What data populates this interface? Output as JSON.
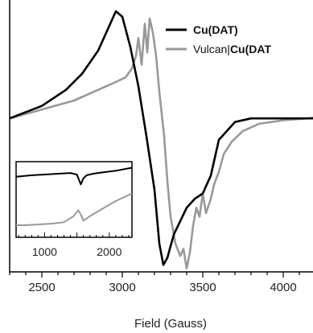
{
  "chart_data": {
    "type": "line",
    "xlabel": "Field (Gauss)",
    "ylabel": "",
    "xlim": [
      2300,
      4250
    ],
    "x_ticks": [
      2500,
      3000,
      3500,
      4000
    ],
    "x_tick_labels": [
      "2500",
      "3000",
      "3500",
      "4000"
    ],
    "y_ticks": [],
    "legend": {
      "placement": "top-right",
      "entries": [
        {
          "text_plain": "",
          "text_bold": "Cu(DAT)",
          "color": "#000000"
        },
        {
          "text_plain": "Vulcan|",
          "text_bold": "Cu(DAT",
          "color": "#999999"
        }
      ]
    },
    "series": [
      {
        "color": "#000000",
        "x": [
          2300,
          2500,
          2650,
          2750,
          2850,
          2920,
          2960,
          3000,
          3050,
          3100,
          3150,
          3200,
          3230,
          3255,
          3280,
          3320,
          3400,
          3450,
          3500,
          3550,
          3600,
          3700,
          3800,
          4000,
          4250
        ],
        "y": [
          0.4,
          0.47,
          0.56,
          0.65,
          0.78,
          0.92,
          1.0,
          0.97,
          0.8,
          0.58,
          0.3,
          0.0,
          -0.3,
          -0.42,
          -0.38,
          -0.25,
          -0.1,
          -0.05,
          -0.02,
          0.08,
          0.28,
          0.38,
          0.4,
          0.4,
          0.4
        ]
      },
      {
        "color": "#999999",
        "x": [
          2300,
          2500,
          2700,
          2850,
          2950,
          3020,
          3060,
          3085,
          3100,
          3120,
          3140,
          3155,
          3170,
          3190,
          3210,
          3230,
          3260,
          3280,
          3300,
          3330,
          3360,
          3380,
          3400,
          3420,
          3440,
          3460,
          3480,
          3500,
          3520,
          3550,
          3570,
          3600,
          3630,
          3680,
          3750,
          3850,
          4000,
          4150,
          4250
        ],
        "y": [
          0.4,
          0.45,
          0.5,
          0.56,
          0.6,
          0.63,
          0.68,
          0.75,
          0.85,
          0.7,
          0.93,
          0.77,
          0.96,
          0.88,
          0.75,
          0.55,
          0.3,
          0.05,
          -0.15,
          -0.3,
          -0.37,
          -0.33,
          -0.44,
          -0.35,
          -0.2,
          -0.1,
          -0.15,
          -0.02,
          -0.13,
          -0.05,
          0.03,
          0.1,
          0.2,
          0.27,
          0.33,
          0.37,
          0.39,
          0.4,
          0.41
        ]
      }
    ],
    "inset": {
      "xlim": [
        560,
        2350
      ],
      "x_ticks": [
        1000,
        2000
      ],
      "x_tick_labels": [
        "1000",
        "2000"
      ],
      "series": [
        {
          "color": "#000000",
          "x": [
            560,
            800,
            1000,
            1200,
            1400,
            1500,
            1560,
            1600,
            1650,
            1750,
            1900,
            2100,
            2350
          ],
          "y": [
            0.8,
            0.82,
            0.83,
            0.84,
            0.85,
            0.83,
            0.7,
            0.78,
            0.82,
            0.84,
            0.86,
            0.88,
            0.92
          ]
        },
        {
          "color": "#999999",
          "x": [
            560,
            700,
            900,
            1100,
            1300,
            1450,
            1520,
            1560,
            1600,
            1700,
            1900,
            2100,
            2350
          ],
          "y": [
            0.16,
            0.16,
            0.17,
            0.18,
            0.2,
            0.28,
            0.36,
            0.3,
            0.22,
            0.28,
            0.38,
            0.48,
            0.58
          ]
        }
      ]
    }
  }
}
